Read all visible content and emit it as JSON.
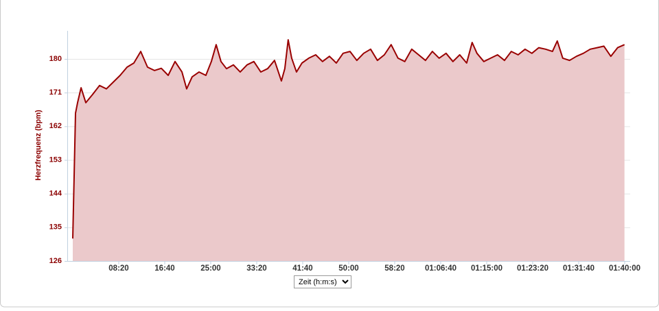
{
  "chart_data": {
    "type": "area",
    "y_label": "Herzfrequenz (bpm)",
    "x_label": "Zeit (h:m:s)",
    "color": "#990000",
    "fill_color": "#ebc9cb",
    "grid": true,
    "ylim": [
      126,
      188
    ],
    "yticks": [
      126,
      135,
      144,
      153,
      162,
      171,
      180
    ],
    "xlim": [
      0,
      6000
    ],
    "xticks": [
      {
        "value": 500,
        "label": "08:20"
      },
      {
        "value": 1000,
        "label": "16:40"
      },
      {
        "value": 1500,
        "label": "25:00"
      },
      {
        "value": 2000,
        "label": "33:20"
      },
      {
        "value": 2500,
        "label": "41:40"
      },
      {
        "value": 3000,
        "label": "50:00"
      },
      {
        "value": 3500,
        "label": "58:20"
      },
      {
        "value": 4000,
        "label": "01:06:40"
      },
      {
        "value": 4500,
        "label": "01:15:00"
      },
      {
        "value": 5000,
        "label": "01:23:20"
      },
      {
        "value": 5500,
        "label": "01:31:40"
      },
      {
        "value": 6000,
        "label": "01:40:00"
      }
    ],
    "x": [
      0,
      30,
      52,
      90,
      142,
      216,
      291,
      366,
      440,
      515,
      590,
      664,
      739,
      813,
      888,
      963,
      1037,
      1112,
      1187,
      1238,
      1298,
      1373,
      1447,
      1507,
      1559,
      1611,
      1671,
      1746,
      1820,
      1895,
      1969,
      2044,
      2119,
      2193,
      2268,
      2305,
      2342,
      2380,
      2432,
      2492,
      2566,
      2641,
      2715,
      2790,
      2865,
      2939,
      3014,
      3088,
      3163,
      3238,
      3312,
      3387,
      3461,
      3536,
      3610,
      3685,
      3760,
      3834,
      3909,
      3983,
      4058,
      4133,
      4207,
      4282,
      4342,
      4394,
      4469,
      4543,
      4618,
      4693,
      4767,
      4842,
      4917,
      4991,
      5066,
      5140,
      5215,
      5267,
      5327,
      5401,
      5476,
      5551,
      5625,
      5700,
      5774,
      5849,
      5923,
      5998
    ],
    "values": [
      132,
      165.5,
      168.3,
      172.3,
      168.3,
      170.5,
      172.9,
      172,
      173.8,
      175.6,
      177.8,
      178.9,
      182,
      177.8,
      176.9,
      177.5,
      175.6,
      179.3,
      176.5,
      172,
      175.2,
      176.5,
      175.6,
      179.3,
      183.8,
      179.3,
      177.4,
      178.4,
      176.5,
      178.4,
      179.3,
      176.5,
      177.4,
      179.6,
      174.1,
      177.4,
      185.1,
      180.2,
      176.5,
      178.9,
      180.2,
      181.1,
      179.3,
      180.7,
      178.9,
      181.5,
      182,
      179.6,
      181.5,
      182.6,
      179.6,
      181.1,
      183.8,
      180.2,
      179.3,
      182.6,
      181.1,
      179.6,
      182,
      180.2,
      181.5,
      179.3,
      181.1,
      178.9,
      184.4,
      181.5,
      179.3,
      180.2,
      181.1,
      179.6,
      182,
      181.1,
      182.6,
      181.5,
      183,
      182.6,
      182,
      184.8,
      180.2,
      179.6,
      180.7,
      181.5,
      182.6,
      183,
      183.4,
      180.7,
      183,
      183.8
    ]
  }
}
